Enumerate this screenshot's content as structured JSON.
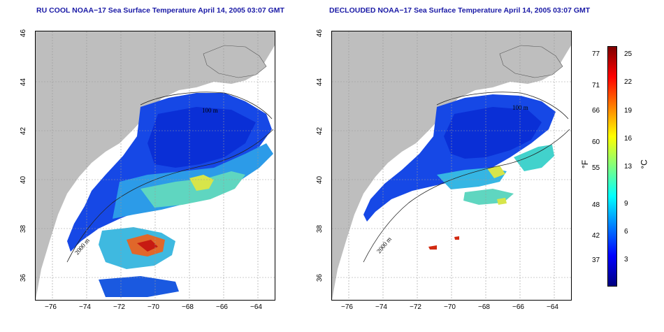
{
  "panels": [
    {
      "title": "RU COOL NOAA−17 Sea Surface Temperature April 14, 2005 03:07 GMT"
    },
    {
      "title": "DECLOUDED NOAA−17 Sea Surface Temperature April 14, 2005 03:07 GMT"
    }
  ],
  "axes": {
    "x_ticks": [
      "−76",
      "−74",
      "−72",
      "−70",
      "−68",
      "−66",
      "−64"
    ],
    "y_ticks": [
      "46",
      "44",
      "42",
      "40",
      "38",
      "36"
    ]
  },
  "contour_labels": [
    "100 m",
    "100 m",
    "2000 m",
    "2000 m"
  ],
  "colorbar": {
    "fahrenheit_ticks": [
      "77",
      "71",
      "66",
      "60",
      "55",
      "48",
      "42",
      "37"
    ],
    "celsius_ticks": [
      "25",
      "22",
      "19",
      "16",
      "13",
      "9",
      "6",
      "3"
    ],
    "fahrenheit_label": "°F",
    "celsius_label": "°C",
    "colors": [
      "#00007f",
      "#0000ff",
      "#007fff",
      "#00ffff",
      "#7fff7f",
      "#ffff00",
      "#ff7f00",
      "#ff0000",
      "#7f0000"
    ]
  }
}
